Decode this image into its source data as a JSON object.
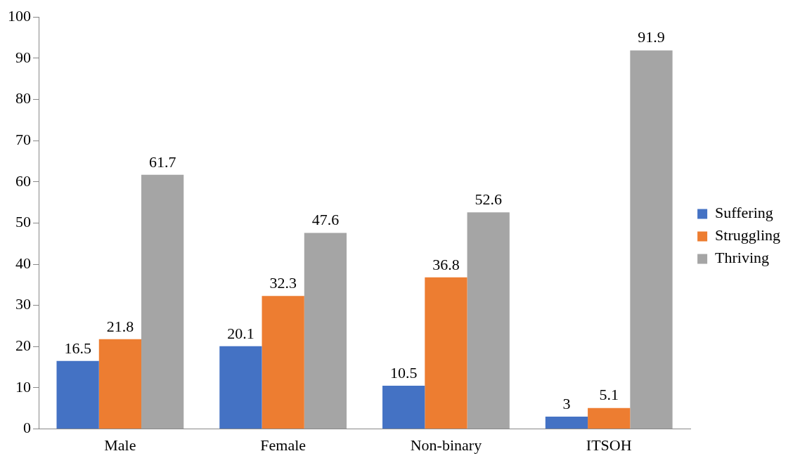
{
  "chart_data": {
    "type": "bar",
    "categories": [
      "Male",
      "Female",
      "Non-binary",
      "ITSOH"
    ],
    "series": [
      {
        "name": "Suffering",
        "color": "#4472c4",
        "values": [
          16.5,
          20.1,
          10.5,
          3
        ]
      },
      {
        "name": "Struggling",
        "color": "#ed7d31",
        "values": [
          21.8,
          32.3,
          36.8,
          5.1
        ]
      },
      {
        "name": "Thriving",
        "color": "#a5a5a5",
        "values": [
          61.7,
          47.6,
          52.6,
          91.9
        ]
      }
    ],
    "ylim": [
      0,
      100
    ],
    "yticks": [
      0,
      10,
      20,
      30,
      40,
      50,
      60,
      70,
      80,
      90,
      100
    ],
    "grid": false,
    "legend": "right",
    "data_labels": true
  }
}
